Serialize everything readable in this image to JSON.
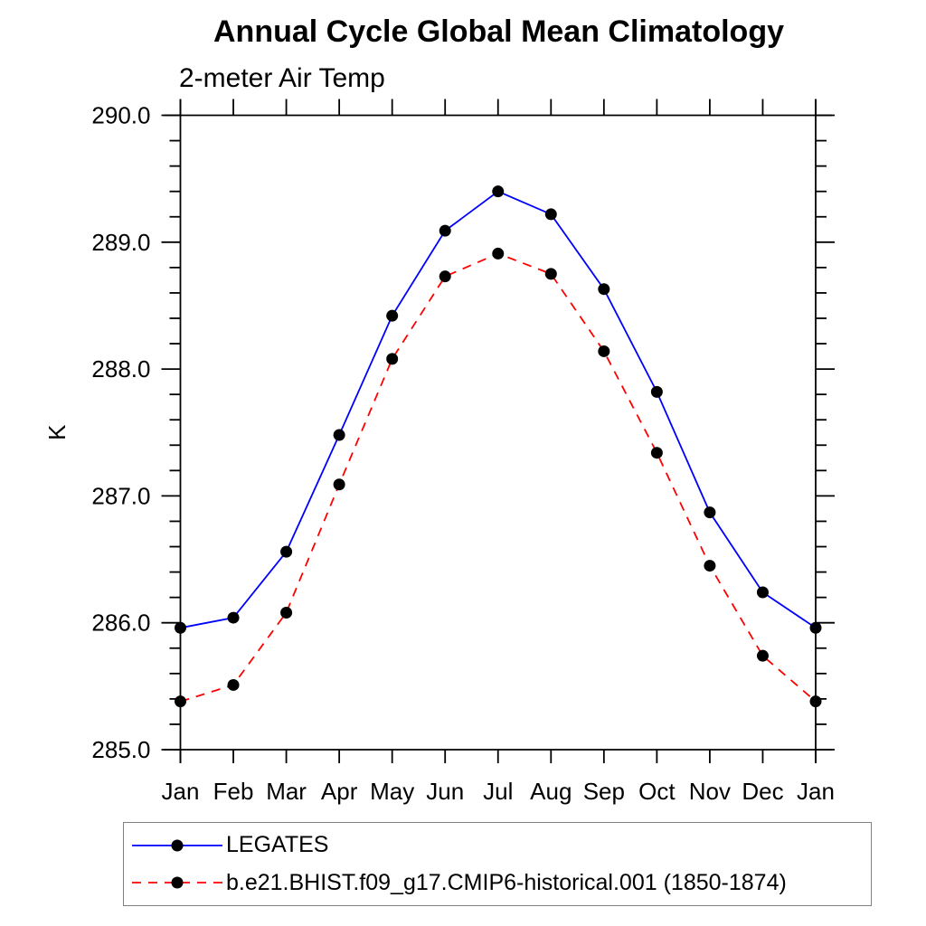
{
  "title": "Annual Cycle Global Mean Climatology",
  "subtitle": "2-meter Air Temp",
  "chart_data": {
    "type": "line",
    "title": "Annual Cycle Global Mean Climatology",
    "subtitle": "2-meter Air Temp",
    "xlabel": "",
    "ylabel": "K",
    "ylim": [
      285.0,
      290.0
    ],
    "y_major_step": 1.0,
    "y_minor_step": 0.2,
    "y_tick_labels": [
      "285.0",
      "286.0",
      "287.0",
      "288.0",
      "289.0",
      "290.0"
    ],
    "grid": false,
    "legend_position": "bottom-left-box",
    "categories": [
      "Jan",
      "Feb",
      "Mar",
      "Apr",
      "May",
      "Jun",
      "Jul",
      "Aug",
      "Sep",
      "Oct",
      "Nov",
      "Dec",
      "Jan"
    ],
    "series": [
      {
        "name": "LEGATES",
        "color": "#0000ff",
        "line_style": "solid",
        "marker": "filled-circle",
        "marker_color": "#000000",
        "values": [
          285.96,
          286.04,
          286.56,
          287.48,
          288.42,
          289.09,
          289.4,
          289.22,
          288.63,
          287.82,
          286.87,
          286.24,
          285.96
        ]
      },
      {
        "name": "b.e21.BHIST.f09_g17.CMIP6-historical.001 (1850-1874)",
        "color": "#ff0000",
        "line_style": "dashed",
        "marker": "filled-circle",
        "marker_color": "#000000",
        "values": [
          285.38,
          285.51,
          286.08,
          287.09,
          288.08,
          288.73,
          288.91,
          288.75,
          288.14,
          287.34,
          286.45,
          285.74,
          285.38
        ]
      }
    ]
  }
}
